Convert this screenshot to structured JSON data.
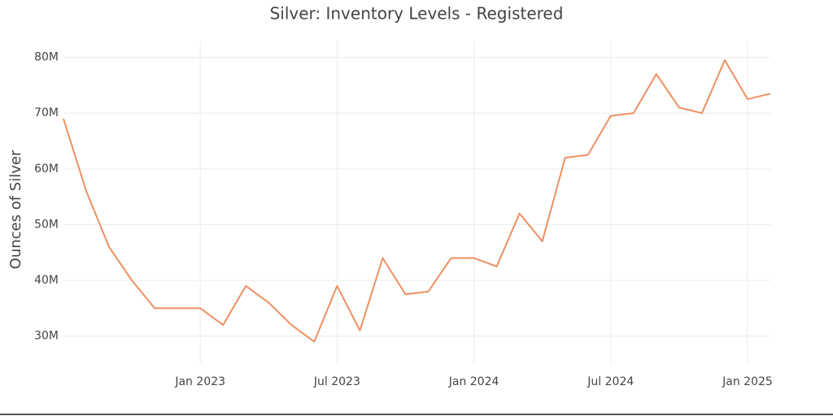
{
  "chart_data": {
    "type": "line",
    "title": "Silver: Inventory Levels - Registered",
    "y_label": "Ounces of Silver",
    "x": [
      "2022-07",
      "2022-08",
      "2022-09",
      "2022-10",
      "2022-11",
      "2022-12",
      "2023-01",
      "2023-02",
      "2023-03",
      "2023-04",
      "2023-05",
      "2023-06",
      "2023-07",
      "2023-08",
      "2023-09",
      "2023-10",
      "2023-11",
      "2023-12",
      "2024-01",
      "2024-02",
      "2024-03",
      "2024-04",
      "2024-05",
      "2024-06",
      "2024-07",
      "2024-08",
      "2024-09",
      "2024-10",
      "2024-11",
      "2024-12",
      "2025-01",
      "2025-02"
    ],
    "series": [
      {
        "name": "Registered",
        "color": "#ee8f63",
        "values": [
          69000000,
          56000000,
          46000000,
          40000000,
          35000000,
          35000000,
          35000000,
          32000000,
          39000000,
          36000000,
          32000000,
          29000000,
          39000000,
          31000000,
          44000000,
          37500000,
          38000000,
          44000000,
          44000000,
          42500000,
          52000000,
          47000000,
          62000000,
          62500000,
          69500000,
          70000000,
          77000000,
          71000000,
          70000000,
          79500000,
          72500000,
          73500000
        ]
      }
    ],
    "xlim": [
      "2022-07",
      "2025-02"
    ],
    "xticks": [
      {
        "value": "2023-01",
        "label": "Jan 2023"
      },
      {
        "value": "2023-07",
        "label": "Jul 2023"
      },
      {
        "value": "2024-01",
        "label": "Jan 2024"
      },
      {
        "value": "2024-07",
        "label": "Jul 2024"
      },
      {
        "value": "2025-01",
        "label": "Jan 2025"
      }
    ],
    "ylim": [
      25000000,
      83000000
    ],
    "yticks": [
      {
        "value": 30000000,
        "label": "30M"
      },
      {
        "value": 40000000,
        "label": "40M"
      },
      {
        "value": 50000000,
        "label": "50M"
      },
      {
        "value": 60000000,
        "label": "60M"
      },
      {
        "value": 70000000,
        "label": "70M"
      },
      {
        "value": 80000000,
        "label": "80M"
      }
    ],
    "grid": true
  }
}
